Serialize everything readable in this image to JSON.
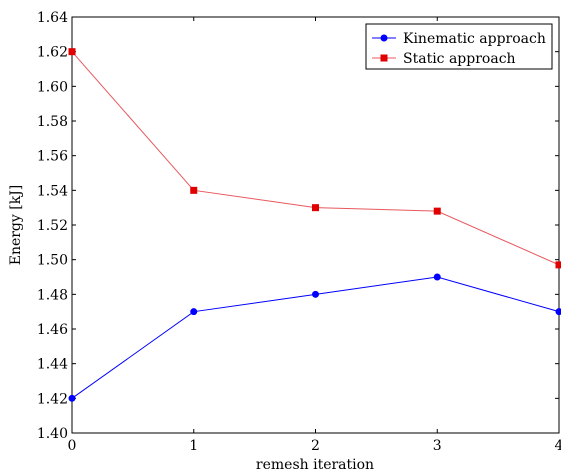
{
  "chart_data": {
    "type": "line",
    "xlabel": "remesh iteration",
    "ylabel": "Energy [kJ]",
    "x": [
      0,
      1,
      2,
      3,
      4
    ],
    "xlim": [
      0,
      4
    ],
    "ylim": [
      1.4,
      1.64
    ],
    "xticks": [
      "0",
      "1",
      "2",
      "3",
      "4"
    ],
    "yticks": [
      "1.40",
      "1.42",
      "1.44",
      "1.46",
      "1.48",
      "1.50",
      "1.52",
      "1.54",
      "1.56",
      "1.58",
      "1.60",
      "1.62",
      "1.64"
    ],
    "grid": false,
    "legend_position": "top-right",
    "series": [
      {
        "name": "Kinematic approach",
        "color": "#0000ff",
        "marker": "circle",
        "values": [
          1.42,
          1.47,
          1.48,
          1.49,
          1.47
        ]
      },
      {
        "name": "Static approach",
        "color": "#ff0000",
        "line_color": "#e8585e",
        "marker": "square",
        "values": [
          1.62,
          1.54,
          1.53,
          1.528,
          1.497
        ]
      }
    ]
  }
}
